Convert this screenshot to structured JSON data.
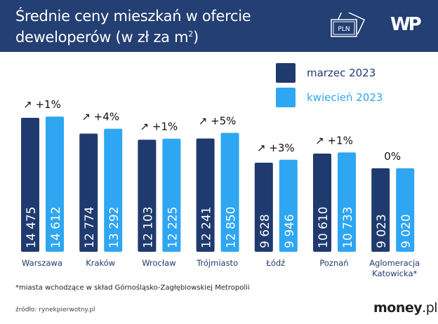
{
  "header": {
    "title_line1": "Średnie ceny mieszkań w ofercie",
    "title_line2": "deweloperów (w zł za m",
    "title_sup": "2",
    "title_end": ")",
    "icon_label": "PLN",
    "logo": "WP"
  },
  "colors": {
    "header": "#233f73",
    "series_dark": "#1f3a6e",
    "series_light": "#2ea6f2"
  },
  "chart_data": {
    "type": "bar",
    "categories": [
      "Warszawa",
      "Kraków",
      "Wrocław",
      "Trójmiasto",
      "Łódź",
      "Poznań",
      "Aglomeracja Katowicka*"
    ],
    "series": [
      {
        "name": "marzec 2023",
        "values": [
          14475,
          12774,
          12103,
          12241,
          9628,
          10610,
          9023
        ]
      },
      {
        "name": "kwiecień 2023",
        "values": [
          14612,
          13292,
          12225,
          12850,
          9946,
          10733,
          9020
        ]
      }
    ],
    "value_labels": [
      [
        "14 475",
        "12 774",
        "12 103",
        "12 241",
        "9 628",
        "10 610",
        "9 023"
      ],
      [
        "14 612",
        "13 292",
        "12 225",
        "12 850",
        "9 946",
        "10 733",
        "9 020"
      ]
    ],
    "changes": [
      "+1%",
      "+4%",
      "+1%",
      "+5%",
      "+3%",
      "+1%",
      "0%"
    ],
    "change_up": [
      true,
      true,
      true,
      true,
      true,
      true,
      false
    ],
    "legend_placement": "top-right",
    "ylim": [
      0,
      15000
    ],
    "grid": false
  },
  "legend": [
    "marzec 2023",
    "kwiecień 2023"
  ],
  "footnote": "*miasta wchodzące w skład Górnośląsko-Zagłębiowskiej Metropolii",
  "source": "źródło: rynekpierwotny.pl",
  "brand": {
    "main": "money",
    "suffix": ".pl"
  }
}
